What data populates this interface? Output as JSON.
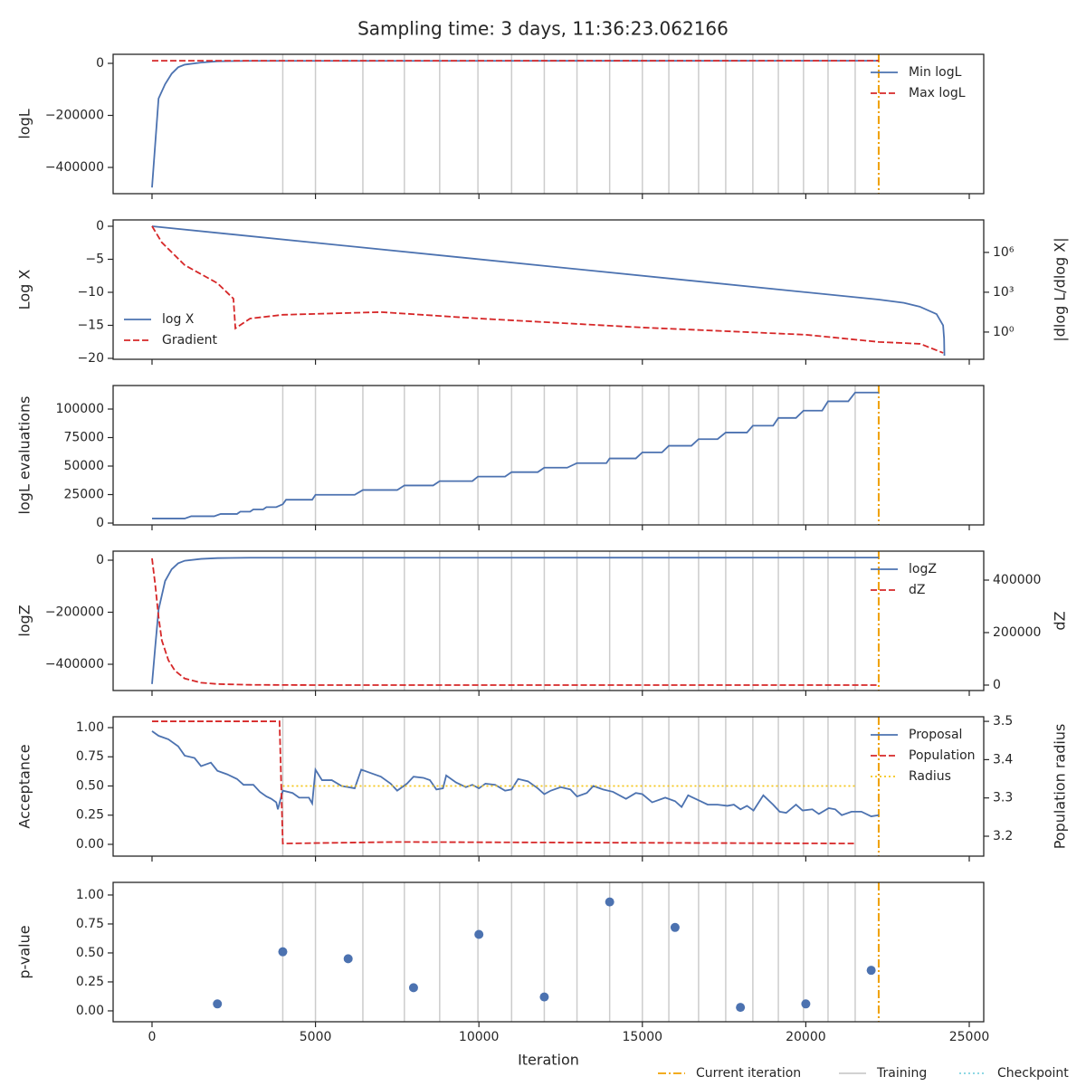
{
  "figure": {
    "title": "Sampling time: 3 days, 11:36:23.062166",
    "xaxis": {
      "label": "Iteration",
      "xlim": [
        -1190,
        25443
      ],
      "xticks": [
        0,
        5000,
        10000,
        15000,
        20000,
        25000
      ]
    },
    "training_iterations": [
      4000,
      5000,
      6450,
      7720,
      8800,
      9970,
      11000,
      12000,
      13000,
      14000,
      15000,
      15810,
      16720,
      17550,
      18380,
      19160,
      19930,
      20680,
      21510
    ],
    "current_iteration": 22230,
    "training_color": "#cccccc",
    "current_color": "#f0a000",
    "legend": [
      {
        "name": "Current iteration",
        "color": "#f0a000",
        "style": "dashdot"
      },
      {
        "name": "Training",
        "color": "#cccccc",
        "style": "solid"
      },
      {
        "name": "Checkpoint",
        "color": "#7fd3e0",
        "style": "dotted"
      }
    ]
  },
  "chart_data": [
    {
      "type": "line",
      "ylabel": "logL",
      "iteration_lines": true,
      "legend": "upper right",
      "ylim": [
        -500870,
        34800
      ],
      "yticks": [
        0,
        {
          "value": -200000,
          "label": "−200000"
        },
        {
          "value": -400000,
          "label": "−400000"
        }
      ],
      "series": [
        {
          "name": "Min logL",
          "color": "#4c72b0",
          "style": "solid",
          "x": [
            0,
            200,
            400,
            600,
            800,
            1000,
            1500,
            2000,
            3000,
            22230
          ],
          "values": [
            -477000,
            -135000,
            -80000,
            -40000,
            -15000,
            -5000,
            3000,
            8000,
            9500,
            10000
          ]
        },
        {
          "name": "Max logL",
          "color": "#d62728",
          "style": "dashed",
          "x": [
            0,
            22230
          ],
          "values": [
            10000,
            10000
          ]
        }
      ]
    },
    {
      "type": "line",
      "ylabel": "Log X",
      "y2label": "|dlog L/dlog X|",
      "iteration_lines": false,
      "legend": "lower left",
      "ylim": [
        -20.14,
        0.96
      ],
      "yticks": [
        0,
        {
          "value": -5,
          "label": "−5"
        },
        {
          "value": -10,
          "label": "−10"
        },
        {
          "value": -15,
          "label": "−15"
        },
        {
          "value": -20,
          "label": "−20"
        }
      ],
      "y2log": true,
      "y2lim": [
        0.0089,
        280000000
      ],
      "y2ticks": [
        {
          "value": 1,
          "label": "10⁰"
        },
        {
          "value": 1000,
          "label": "10³"
        },
        {
          "value": 1000000,
          "label": "10⁶"
        }
      ],
      "series": [
        {
          "name": "log X",
          "color": "#4c72b0",
          "style": "solid",
          "x": [
            0,
            22230,
            23000,
            23500,
            24000,
            24200,
            24230,
            24240
          ],
          "values": [
            0,
            -11.1,
            -11.6,
            -12.2,
            -13.3,
            -15,
            -17,
            -19.6
          ]
        },
        {
          "name": "Gradient",
          "color": "#d62728",
          "style": "dashed",
          "axis": "y2",
          "x": [
            0,
            300,
            1000,
            2000,
            2490,
            2550,
            3000,
            4000,
            7000,
            10000,
            15000,
            20000,
            22230,
            23500,
            24200
          ],
          "values": [
            95000000,
            5600000,
            110000,
            4800,
            330,
            1.9,
            10.5,
            20,
            32,
            10.5,
            2.2,
            0.63,
            0.18,
            0.13,
            0.027
          ]
        }
      ]
    },
    {
      "type": "line",
      "ylabel": "logL evaluations",
      "iteration_lines": true,
      "ylim": [
        -1587,
        120635
      ],
      "yticks": [
        0,
        25000,
        50000,
        75000,
        100000
      ],
      "series": [
        {
          "color": "#4c72b0",
          "style": "solid",
          "x": [
            0,
            1000,
            1200,
            1900,
            2100,
            2600,
            2700,
            3000,
            3100,
            3400,
            3500,
            3800,
            4000,
            4100,
            4900,
            5000,
            6200,
            6450,
            7500,
            7720,
            8600,
            8800,
            9800,
            9970,
            10800,
            11000,
            11800,
            12000,
            12700,
            13000,
            13900,
            14000,
            14800,
            15000,
            15600,
            15810,
            16500,
            16720,
            17300,
            17550,
            18200,
            18380,
            19000,
            19160,
            19700,
            19930,
            20500,
            20680,
            21300,
            21510,
            22230
          ],
          "values": [
            4000,
            4000,
            6000,
            6000,
            8000,
            8000,
            10000,
            10000,
            12000,
            12000,
            14000,
            14000,
            16500,
            20500,
            20500,
            24800,
            24800,
            29000,
            29000,
            33000,
            33000,
            36800,
            36800,
            40800,
            40800,
            44700,
            44700,
            48600,
            48600,
            52600,
            52600,
            56700,
            56700,
            62000,
            62000,
            67800,
            67800,
            73600,
            73600,
            79400,
            79400,
            85400,
            85400,
            92200,
            92200,
            98600,
            98600,
            106800,
            106800,
            114500,
            114500
          ]
        }
      ]
    },
    {
      "type": "line",
      "ylabel": "logZ",
      "y2label": "dZ",
      "iteration_lines": true,
      "legend": "upper right",
      "ylim": [
        -500870,
        34800
      ],
      "yticks": [
        0,
        {
          "value": -200000,
          "label": "−200000"
        },
        {
          "value": -400000,
          "label": "−400000"
        }
      ],
      "y2lim": [
        -20690,
        510345
      ],
      "y2ticks": [
        0,
        200000,
        400000
      ],
      "series": [
        {
          "name": "logZ",
          "color": "#4c72b0",
          "style": "solid",
          "x": [
            0,
            100,
            200,
            400,
            600,
            800,
            1000,
            1500,
            2000,
            3000,
            22230
          ],
          "values": [
            -476000,
            -330000,
            -190000,
            -80000,
            -35000,
            -12000,
            -2000,
            5000,
            8000,
            9500,
            10000
          ]
        },
        {
          "name": "dZ",
          "color": "#d62728",
          "style": "dashed",
          "axis": "y2",
          "x": [
            0,
            100,
            200,
            300,
            500,
            700,
            1000,
            1500,
            2000,
            3000,
            5000,
            22230
          ],
          "values": [
            483000,
            380000,
            260000,
            170000,
            95000,
            55000,
            25000,
            9000,
            4000,
            1000,
            0,
            0
          ]
        }
      ]
    },
    {
      "type": "line",
      "ylabel": "Acceptance",
      "y2label": "Population radius",
      "iteration_lines": true,
      "legend": "upper right",
      "ylim": [
        -0.101,
        1.093
      ],
      "yticks": [
        {
          "value": 0,
          "label": "0.00"
        },
        {
          "value": 0.25,
          "label": "0.25"
        },
        {
          "value": 0.5,
          "label": "0.50"
        },
        {
          "value": 0.75,
          "label": "0.75"
        },
        {
          "value": 1,
          "label": "1.00"
        }
      ],
      "y2lim": [
        3.148,
        3.512
      ],
      "y2ticks": [
        3.2,
        3.3,
        3.4,
        3.5
      ],
      "series": [
        {
          "name": "Proposal",
          "color": "#4c72b0",
          "style": "solid",
          "x": [
            0,
            200,
            500,
            800,
            1000,
            1300,
            1500,
            1800,
            2000,
            2300,
            2600,
            2800,
            3100,
            3300,
            3500,
            3650,
            3800,
            3850,
            4000,
            4300,
            4500,
            4800,
            4900,
            5000,
            5200,
            5500,
            5800,
            6200,
            6400,
            6700,
            7000,
            7300,
            7500,
            7800,
            8000,
            8300,
            8500,
            8700,
            8900,
            9000,
            9300,
            9600,
            9800,
            10000,
            10200,
            10500,
            10800,
            11000,
            11200,
            11500,
            11800,
            12000,
            12200,
            12500,
            12800,
            13000,
            13300,
            13500,
            13800,
            14100,
            14500,
            14800,
            15000,
            15300,
            15700,
            16000,
            16200,
            16400,
            16700,
            17000,
            17300,
            17600,
            17800,
            18000,
            18200,
            18400,
            18700,
            19000,
            19200,
            19400,
            19700,
            19900,
            20200,
            20400,
            20700,
            20900,
            21100,
            21400,
            21700,
            22000,
            22230
          ],
          "values": [
            0.97,
            0.93,
            0.9,
            0.84,
            0.76,
            0.74,
            0.67,
            0.7,
            0.63,
            0.6,
            0.56,
            0.51,
            0.51,
            0.45,
            0.41,
            0.39,
            0.36,
            0.3,
            0.46,
            0.44,
            0.4,
            0.4,
            0.35,
            0.64,
            0.55,
            0.55,
            0.5,
            0.48,
            0.64,
            0.61,
            0.58,
            0.52,
            0.46,
            0.52,
            0.58,
            0.57,
            0.55,
            0.47,
            0.48,
            0.59,
            0.53,
            0.49,
            0.51,
            0.48,
            0.52,
            0.51,
            0.46,
            0.47,
            0.56,
            0.54,
            0.48,
            0.43,
            0.46,
            0.49,
            0.47,
            0.41,
            0.44,
            0.5,
            0.47,
            0.45,
            0.39,
            0.44,
            0.43,
            0.36,
            0.4,
            0.37,
            0.32,
            0.42,
            0.38,
            0.34,
            0.34,
            0.33,
            0.34,
            0.3,
            0.33,
            0.29,
            0.42,
            0.34,
            0.28,
            0.27,
            0.34,
            0.29,
            0.3,
            0.26,
            0.31,
            0.3,
            0.25,
            0.28,
            0.28,
            0.24,
            0.25
          ]
        },
        {
          "name": "Population",
          "color": "#d62728",
          "style": "dashed",
          "axis": "y2",
          "x": [
            0,
            3900,
            4000,
            7500,
            21510
          ],
          "values": [
            3.5,
            3.5,
            3.181,
            3.185,
            3.181
          ]
        },
        {
          "name": "Radius",
          "color": "#f5c518",
          "style": "dotted",
          "x": [
            4000,
            21510
          ],
          "values": [
            0.5,
            0.5
          ]
        }
      ]
    },
    {
      "type": "scatter",
      "ylabel": "p-value",
      "iteration_lines": true,
      "ylim": [
        -0.094,
        1.109
      ],
      "yticks": [
        {
          "value": 0,
          "label": "0.00"
        },
        {
          "value": 0.25,
          "label": "0.25"
        },
        {
          "value": 0.5,
          "label": "0.50"
        },
        {
          "value": 0.75,
          "label": "0.75"
        },
        {
          "value": 1,
          "label": "1.00"
        }
      ],
      "series": [
        {
          "color": "#4c72b0",
          "x": [
            2000,
            4000,
            6000,
            8000,
            10000,
            12000,
            14000,
            16000,
            18000,
            20000,
            22000
          ],
          "values": [
            0.06,
            0.51,
            0.45,
            0.2,
            0.66,
            0.12,
            0.94,
            0.72,
            0.03,
            0.06,
            0.35
          ]
        }
      ]
    }
  ]
}
